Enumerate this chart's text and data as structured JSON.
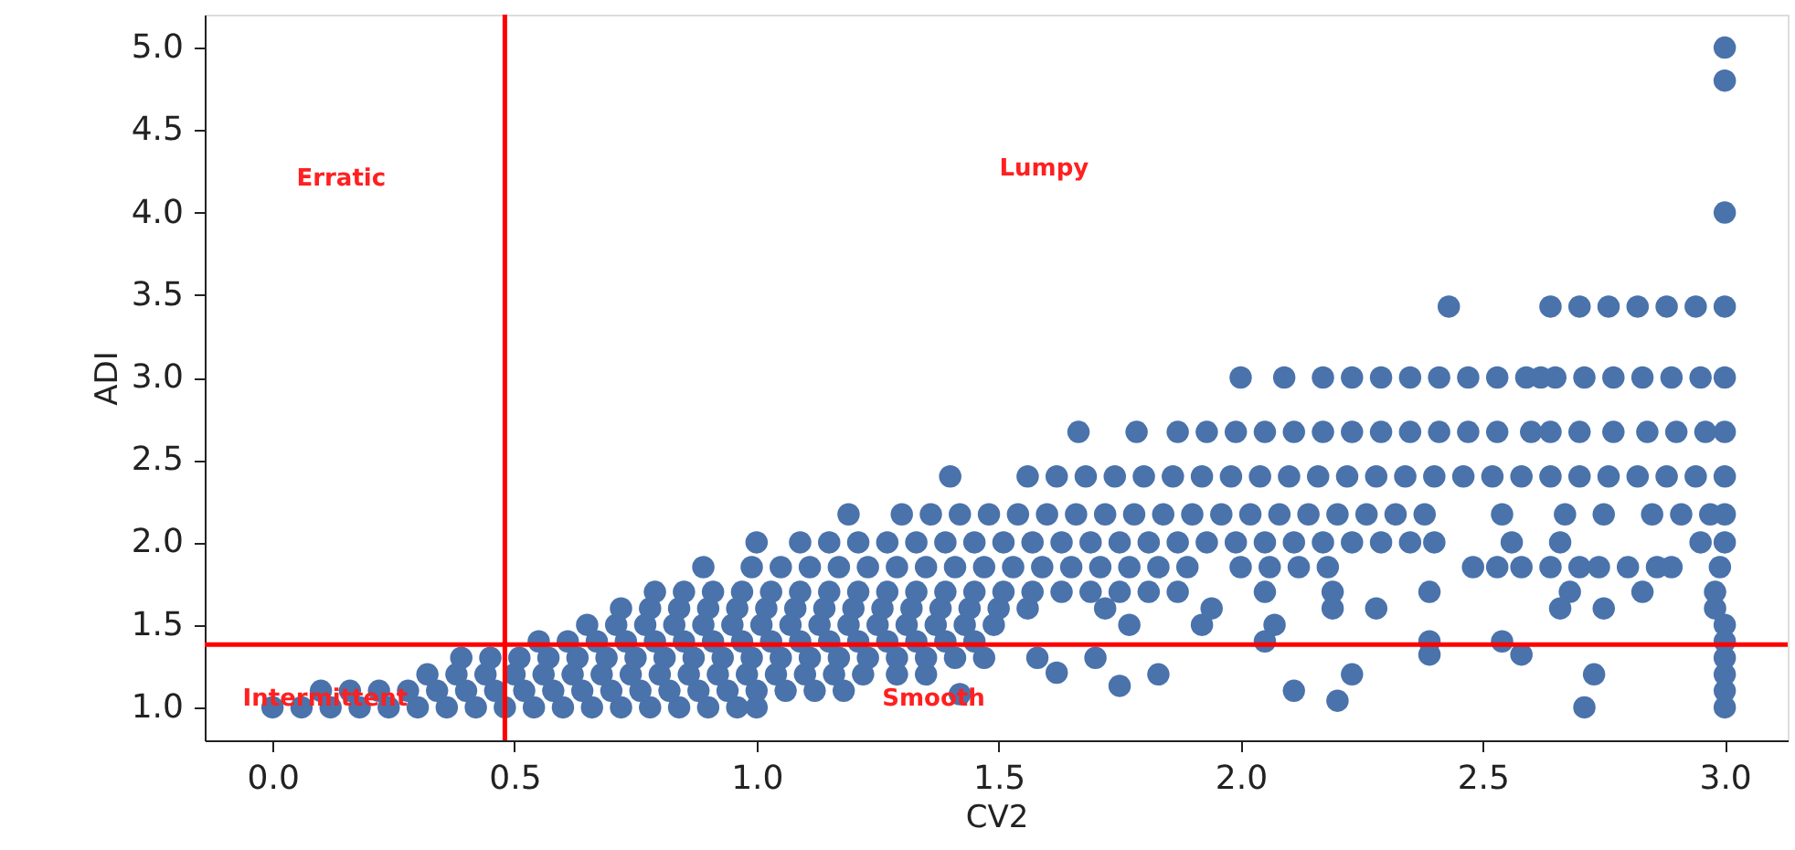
{
  "chart_data": {
    "type": "scatter",
    "xlabel": "CV2",
    "ylabel": "ADI",
    "xlim": [
      -0.14,
      3.13
    ],
    "ylim": [
      0.8,
      5.2
    ],
    "xticks": [
      {
        "value": 0,
        "label": "0.0"
      },
      0.5,
      {
        "value": 1,
        "label": "1.0"
      },
      1.5,
      {
        "value": 2,
        "label": "2.0"
      },
      2.5,
      {
        "value": 3,
        "label": "3.0"
      }
    ],
    "yticks": [
      {
        "value": 1,
        "label": "1.0"
      },
      1.5,
      {
        "value": 2,
        "label": "2.0"
      },
      2.5,
      {
        "value": 3,
        "label": "3.0"
      },
      3.5,
      {
        "value": 4,
        "label": "4.0"
      },
      4.5,
      {
        "value": 5,
        "label": "5.0"
      }
    ],
    "grid": false,
    "series": [
      {
        "color": "#4a72ab",
        "x": [
          0,
          0.06,
          0.12,
          0.18,
          0.24,
          0.3,
          0.36,
          0.42,
          0.48,
          0.54,
          0.6,
          0.66,
          0.72,
          0.78,
          0.84,
          0.9,
          0.96,
          1.0,
          2.71
        ],
        "values": [
          1.0,
          1.0,
          1.0,
          1.0,
          1.0,
          1.0,
          1.0,
          1.0,
          1.0,
          1.0,
          1.0,
          1.0,
          1.0,
          1.0,
          1.0,
          1.0,
          1.0,
          1.0,
          1.0
        ]
      },
      {
        "color": "#4a72ab",
        "x": [
          1.42,
          2.2,
          1.75,
          2.11
        ],
        "values": [
          1.08,
          1.04,
          1.13,
          1.1
        ]
      },
      {
        "color": "#4a72ab",
        "x": [
          0.1,
          0.16,
          0.22,
          0.28,
          0.34,
          0.4,
          0.46,
          0.52,
          0.58,
          0.64,
          0.7,
          0.76,
          0.82,
          0.88,
          0.94,
          1.0,
          1.06,
          1.12,
          1.18
        ],
        "values": [
          1.1,
          1.1,
          1.1,
          1.1,
          1.1,
          1.1,
          1.1,
          1.1,
          1.1,
          1.1,
          1.1,
          1.1,
          1.1,
          1.1,
          1.1,
          1.1,
          1.1,
          1.1,
          1.1
        ]
      },
      {
        "color": "#4a72ab",
        "x": [
          0.32,
          0.38,
          0.44,
          0.5,
          0.56,
          0.62,
          0.68,
          0.74,
          0.8,
          0.86,
          0.92,
          0.98,
          1.04,
          1.1,
          1.16,
          1.22,
          1.29,
          1.35,
          1.62,
          1.83,
          2.23,
          2.73
        ],
        "values": [
          1.2,
          1.2,
          1.2,
          1.2,
          1.2,
          1.2,
          1.2,
          1.2,
          1.2,
          1.2,
          1.2,
          1.2,
          1.2,
          1.2,
          1.2,
          1.2,
          1.2,
          1.2,
          1.21,
          1.2,
          1.2,
          1.2
        ]
      },
      {
        "color": "#4a72ab",
        "x": [
          0.39,
          0.45,
          0.51,
          0.57,
          0.63,
          0.69,
          0.75,
          0.81,
          0.87,
          0.93,
          0.99,
          1.05,
          1.11,
          1.17,
          1.23,
          1.29,
          1.35,
          1.41,
          1.47,
          1.58,
          1.7,
          2.39,
          2.58
        ],
        "values": [
          1.3,
          1.3,
          1.3,
          1.3,
          1.3,
          1.3,
          1.3,
          1.3,
          1.3,
          1.3,
          1.3,
          1.3,
          1.3,
          1.3,
          1.3,
          1.3,
          1.3,
          1.3,
          1.3,
          1.3,
          1.3,
          1.32,
          1.32
        ]
      },
      {
        "color": "#4a72ab",
        "x": [
          3.0,
          3.0,
          3.0,
          3.0,
          3.0,
          3.0
        ],
        "values": [
          1.0,
          1.1,
          1.2,
          1.3,
          1.4,
          1.5
        ]
      },
      {
        "color": "#4a72ab",
        "x": [
          0.55,
          0.61,
          0.67,
          0.73,
          0.79,
          0.85,
          0.91,
          0.97,
          1.03,
          1.09,
          1.15,
          1.21,
          1.27,
          1.33,
          1.39,
          1.45,
          2.05,
          2.39,
          2.54
        ],
        "values": [
          1.4,
          1.4,
          1.4,
          1.4,
          1.4,
          1.4,
          1.4,
          1.4,
          1.4,
          1.4,
          1.4,
          1.4,
          1.4,
          1.4,
          1.4,
          1.4,
          1.4,
          1.4,
          1.4
        ]
      },
      {
        "color": "#4a72ab",
        "x": [
          0.65,
          0.71,
          0.77,
          0.83,
          0.89,
          0.95,
          1.01,
          1.07,
          1.13,
          1.19,
          1.25,
          1.31,
          1.37,
          1.43,
          1.49,
          1.77,
          1.92,
          2.07
        ],
        "values": [
          1.5,
          1.5,
          1.5,
          1.5,
          1.5,
          1.5,
          1.5,
          1.5,
          1.5,
          1.5,
          1.5,
          1.5,
          1.5,
          1.5,
          1.5,
          1.5,
          1.5,
          1.5
        ]
      },
      {
        "color": "#4a72ab",
        "x": [
          0.72,
          0.78,
          0.84,
          0.9,
          0.96,
          1.02,
          1.08,
          1.14,
          1.2,
          1.26,
          1.32,
          1.38,
          1.44,
          1.5,
          1.56,
          1.72,
          1.94,
          2.19,
          2.28,
          2.66,
          2.75,
          2.98
        ],
        "values": [
          1.6,
          1.6,
          1.6,
          1.6,
          1.6,
          1.6,
          1.6,
          1.6,
          1.6,
          1.6,
          1.6,
          1.6,
          1.6,
          1.6,
          1.6,
          1.6,
          1.6,
          1.6,
          1.6,
          1.6,
          1.6,
          1.6
        ]
      },
      {
        "color": "#4a72ab",
        "x": [
          0.79,
          0.85,
          0.91,
          0.97,
          1.03,
          1.09,
          1.15,
          1.21,
          1.27,
          1.33,
          1.39,
          1.45,
          1.51,
          1.57,
          1.63,
          1.69,
          1.75,
          1.81,
          1.87,
          2.05,
          2.19,
          2.39,
          2.68,
          2.83,
          2.98
        ],
        "values": [
          1.7,
          1.7,
          1.7,
          1.7,
          1.7,
          1.7,
          1.7,
          1.7,
          1.7,
          1.7,
          1.7,
          1.7,
          1.7,
          1.7,
          1.7,
          1.7,
          1.7,
          1.7,
          1.7,
          1.7,
          1.7,
          1.7,
          1.7,
          1.7,
          1.7
        ]
      },
      {
        "color": "#4a72ab",
        "x": [
          0.89,
          0.99,
          1.05,
          1.11,
          1.17,
          1.23,
          1.29,
          1.35,
          1.41,
          1.47,
          1.53,
          1.59,
          1.65,
          1.71,
          1.77,
          1.83,
          1.89,
          2.0,
          2.06,
          2.12,
          2.18,
          2.48,
          2.53,
          2.58,
          2.64,
          2.7,
          2.74,
          2.8,
          2.86,
          2.89,
          2.99
        ],
        "values": [
          1.85,
          1.85,
          1.85,
          1.85,
          1.85,
          1.85,
          1.85,
          1.85,
          1.85,
          1.85,
          1.85,
          1.85,
          1.85,
          1.85,
          1.85,
          1.85,
          1.85,
          1.85,
          1.85,
          1.85,
          1.85,
          1.85,
          1.85,
          1.85,
          1.85,
          1.85,
          1.85,
          1.85,
          1.85,
          1.85,
          1.85
        ]
      },
      {
        "color": "#4a72ab",
        "x": [
          1.0,
          1.09,
          1.15,
          1.21,
          1.27,
          1.33,
          1.39,
          1.45,
          1.51,
          1.57,
          1.63,
          1.69,
          1.75,
          1.81,
          1.87,
          1.93,
          1.99,
          2.05,
          2.11,
          2.17,
          2.23,
          2.29,
          2.35,
          2.4,
          2.56,
          2.66,
          2.95,
          3.0
        ],
        "values": [
          2.0,
          2.0,
          2.0,
          2.0,
          2.0,
          2.0,
          2.0,
          2.0,
          2.0,
          2.0,
          2.0,
          2.0,
          2.0,
          2.0,
          2.0,
          2.0,
          2.0,
          2.0,
          2.0,
          2.0,
          2.0,
          2.0,
          2.0,
          2.0,
          2.0,
          2.0,
          2.0,
          2.0
        ]
      },
      {
        "color": "#4a72ab",
        "x": [
          1.19,
          1.3,
          1.36,
          1.42,
          1.48,
          1.54,
          1.6,
          1.66,
          1.72,
          1.78,
          1.84,
          1.9,
          1.96,
          2.02,
          2.08,
          2.14,
          2.2,
          2.26,
          2.32,
          2.38,
          2.54,
          2.67,
          2.75,
          2.85,
          2.91,
          2.97,
          3.0
        ],
        "values": [
          2.17,
          2.17,
          2.17,
          2.17,
          2.17,
          2.17,
          2.17,
          2.17,
          2.17,
          2.17,
          2.17,
          2.17,
          2.17,
          2.17,
          2.17,
          2.17,
          2.17,
          2.17,
          2.17,
          2.17,
          2.17,
          2.17,
          2.17,
          2.17,
          2.17,
          2.17,
          2.17
        ]
      },
      {
        "color": "#4a72ab",
        "x": [
          1.4,
          1.56,
          1.62,
          1.68,
          1.74,
          1.8,
          1.86,
          1.92,
          1.98,
          2.04,
          2.1,
          2.16,
          2.22,
          2.28,
          2.34,
          2.4,
          2.46,
          2.52,
          2.58,
          2.64,
          2.7,
          2.76,
          2.82,
          2.88,
          2.94,
          3.0
        ],
        "values": [
          2.4,
          2.4,
          2.4,
          2.4,
          2.4,
          2.4,
          2.4,
          2.4,
          2.4,
          2.4,
          2.4,
          2.4,
          2.4,
          2.4,
          2.4,
          2.4,
          2.4,
          2.4,
          2.4,
          2.4,
          2.4,
          2.4,
          2.4,
          2.4,
          2.4,
          2.4
        ]
      },
      {
        "color": "#4a72ab",
        "x": [
          1.665,
          1.785,
          1.87,
          1.93,
          1.99,
          2.05,
          2.11,
          2.17,
          2.23,
          2.29,
          2.35,
          2.41,
          2.47,
          2.53,
          2.6,
          2.64,
          2.7,
          2.77,
          2.84,
          2.9,
          2.96,
          3.0
        ],
        "values": [
          2.67,
          2.67,
          2.67,
          2.67,
          2.67,
          2.67,
          2.67,
          2.67,
          2.67,
          2.67,
          2.67,
          2.67,
          2.67,
          2.67,
          2.67,
          2.67,
          2.67,
          2.67,
          2.67,
          2.67,
          2.67,
          2.67
        ]
      },
      {
        "color": "#4a72ab",
        "x": [
          2.0,
          2.09,
          2.17,
          2.23,
          2.29,
          2.35,
          2.41,
          2.47,
          2.53,
          2.59,
          2.62,
          2.65,
          2.71,
          2.77,
          2.83,
          2.89,
          2.95,
          3.0
        ],
        "values": [
          3.0,
          3.0,
          3.0,
          3.0,
          3.0,
          3.0,
          3.0,
          3.0,
          3.0,
          3.0,
          3.0,
          3.0,
          3.0,
          3.0,
          3.0,
          3.0,
          3.0,
          3.0
        ]
      },
      {
        "color": "#4a72ab",
        "x": [
          2.43,
          2.64,
          2.7,
          2.76,
          2.82,
          2.88,
          2.94,
          3.0,
          3.0,
          3.0,
          3.0
        ],
        "values": [
          3.43,
          3.43,
          3.43,
          3.43,
          3.43,
          3.43,
          3.43,
          3.43,
          4.0,
          4.8,
          5.0
        ]
      }
    ],
    "ref_lines": [
      {
        "axis": "x",
        "value": 0.48,
        "color": "#ff0000"
      },
      {
        "axis": "y",
        "value": 1.38,
        "color": "#ff0000"
      }
    ],
    "annotations": [
      "Erratic",
      "Lumpy",
      "Intermittent",
      "Smooth"
    ]
  }
}
